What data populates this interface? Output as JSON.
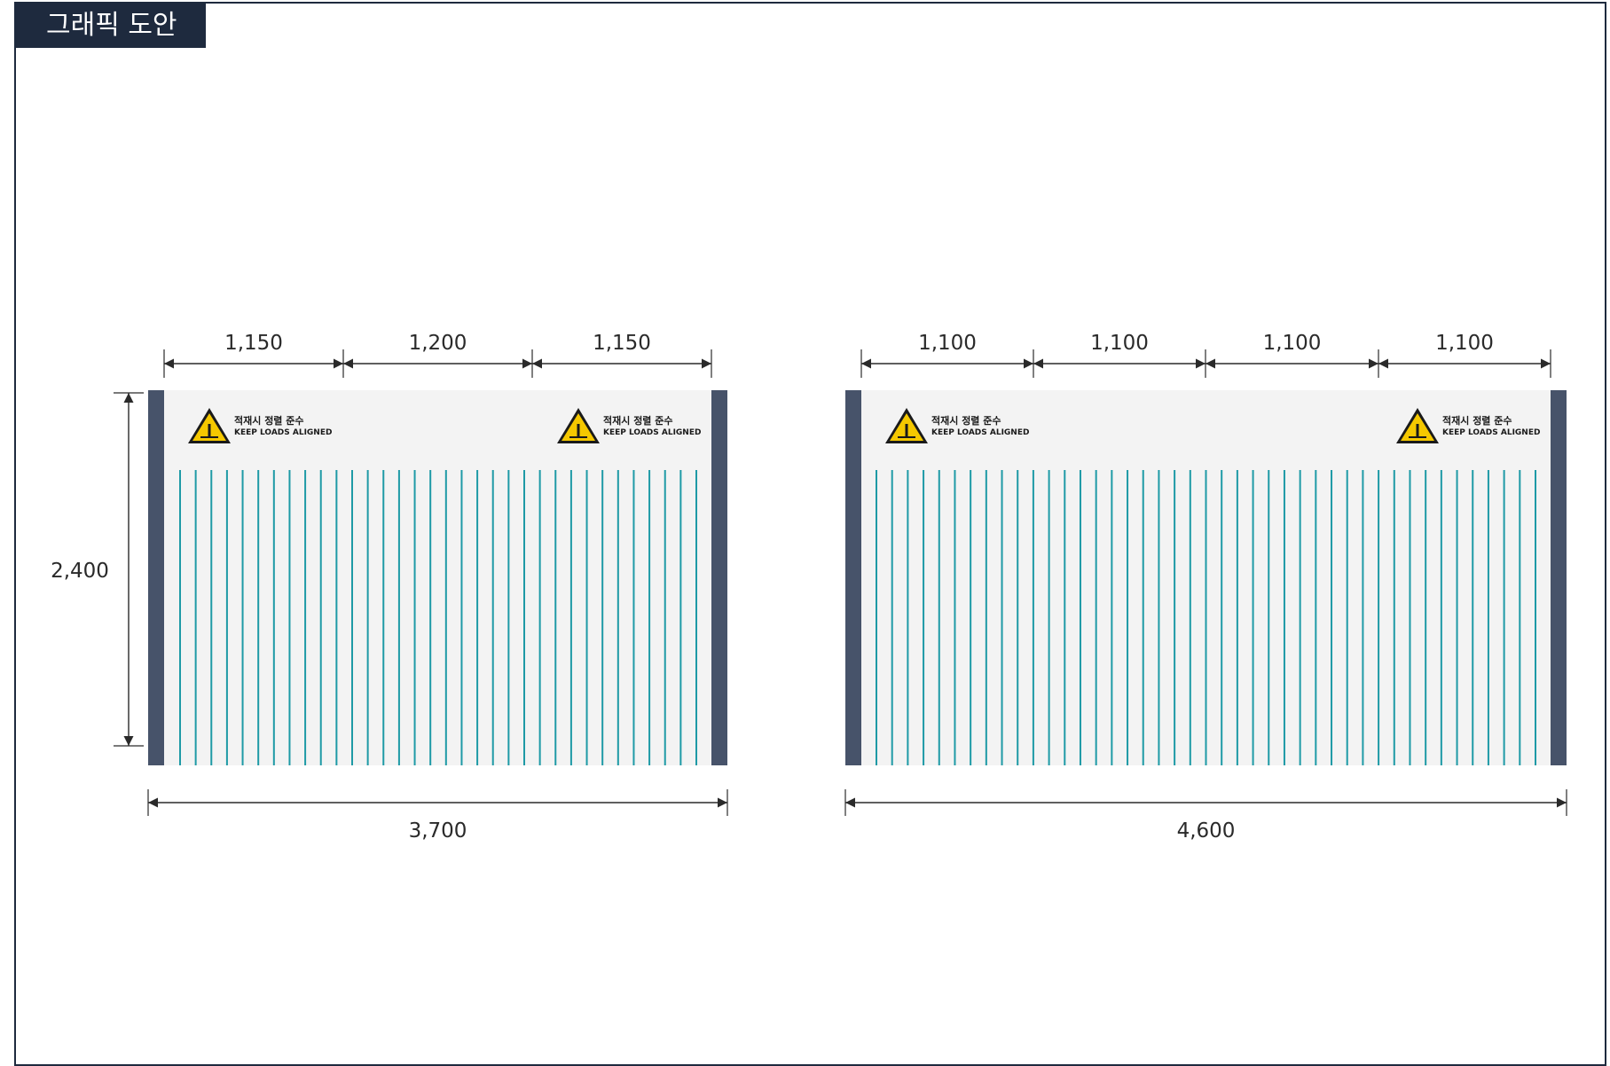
{
  "header": {
    "title": "그래픽 도안"
  },
  "colors": {
    "title_bg": "#1e2a3e",
    "panel_bg": "#f3f3f3",
    "post": "#47536a",
    "stripe": "#1e9aa6",
    "dimension": "#2a2a2a",
    "warning_yellow": "#f5c800"
  },
  "sign": {
    "line1": "적재시 정렬 준수",
    "line2": "KEEP LOADS ALIGNED",
    "icon": "warning-triangle-icon"
  },
  "left_panel": {
    "height_label": "2,400",
    "total_width_label": "3,700",
    "segment_labels": [
      "1,150",
      "1,200",
      "1,150"
    ],
    "stripe_count": 34
  },
  "right_panel": {
    "total_width_label": "4,600",
    "segment_labels": [
      "1,100",
      "1,100",
      "1,100",
      "1,100"
    ],
    "stripe_count": 43
  }
}
